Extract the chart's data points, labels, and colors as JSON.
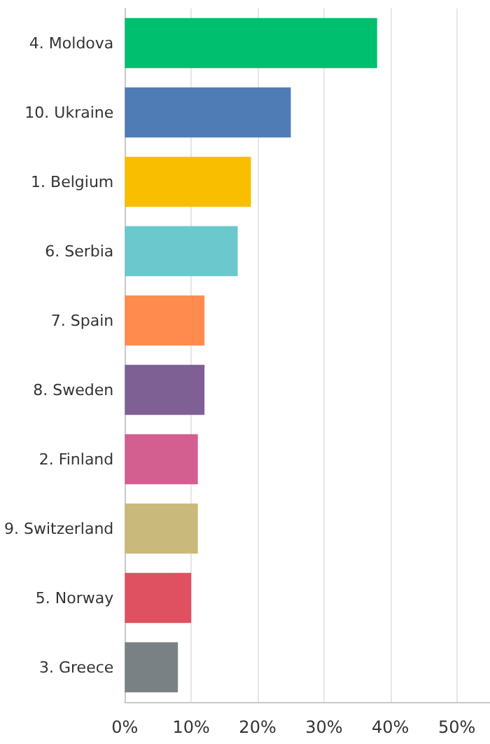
{
  "chart_data": {
    "type": "bar",
    "orientation": "horizontal",
    "categories": [
      "4. Moldova",
      "10. Ukraine",
      "1. Belgium",
      "6. Serbia",
      "7. Spain",
      "8. Sweden",
      "2. Finland",
      "9. Switzerland",
      "5. Norway",
      "3. Greece"
    ],
    "values": [
      38,
      25,
      19,
      17,
      12,
      12,
      11,
      11,
      10,
      8
    ],
    "colors": [
      "#00bf6f",
      "#507cb6",
      "#f9be00",
      "#6bc8cd",
      "#ff8b4f",
      "#7f6095",
      "#d25f90",
      "#c9b97b",
      "#df5160",
      "#7a8185"
    ],
    "xlim": [
      0,
      55
    ],
    "xticks": [
      {
        "value": 0,
        "label": "0%"
      },
      {
        "value": 10,
        "label": "10%"
      },
      {
        "value": 20,
        "label": "20%"
      },
      {
        "value": 30,
        "label": "30%"
      },
      {
        "value": 40,
        "label": "40%"
      },
      {
        "value": 50,
        "label": "50%"
      }
    ],
    "grid": "x"
  }
}
